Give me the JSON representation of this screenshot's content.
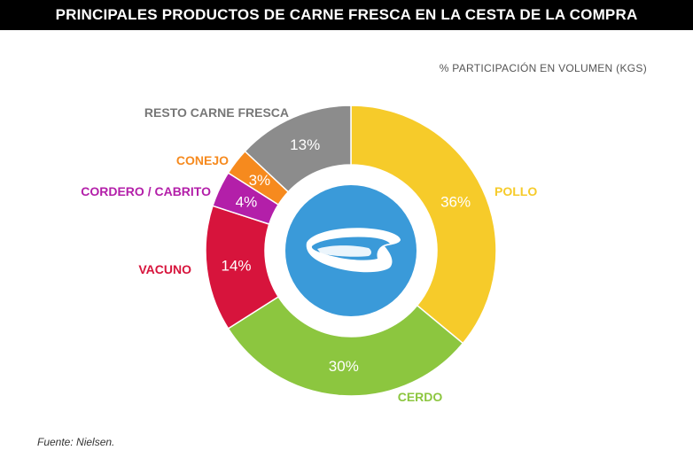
{
  "chart_data": {
    "type": "pie",
    "variant": "donut",
    "title": "PRINCIPALES PRODUCTOS DE CARNE FRESCA EN LA CESTA DE LA COMPRA",
    "subtitle": "% PARTICIPACIÓN EN VOLUMEN (KGS)",
    "source": "Fuente: Nielsen.",
    "center_icon": "meat-steak-icon",
    "slices": [
      {
        "label": "POLLO",
        "value": 36,
        "value_label": "36%",
        "color": "#F6CB2A"
      },
      {
        "label": "CERDO",
        "value": 30,
        "value_label": "30%",
        "color": "#8CC63F"
      },
      {
        "label": "VACUNO",
        "value": 14,
        "value_label": "14%",
        "color": "#D7143C"
      },
      {
        "label": "CORDERO / CABRITO",
        "value": 4,
        "value_label": "4%",
        "color": "#B31FA9"
      },
      {
        "label": "CONEJO",
        "value": 3,
        "value_label": "3%",
        "color": "#F68A1E"
      },
      {
        "label": "RESTO CARNE FRESCA",
        "value": 13,
        "value_label": "13%",
        "color": "#8C8C8C"
      }
    ]
  }
}
